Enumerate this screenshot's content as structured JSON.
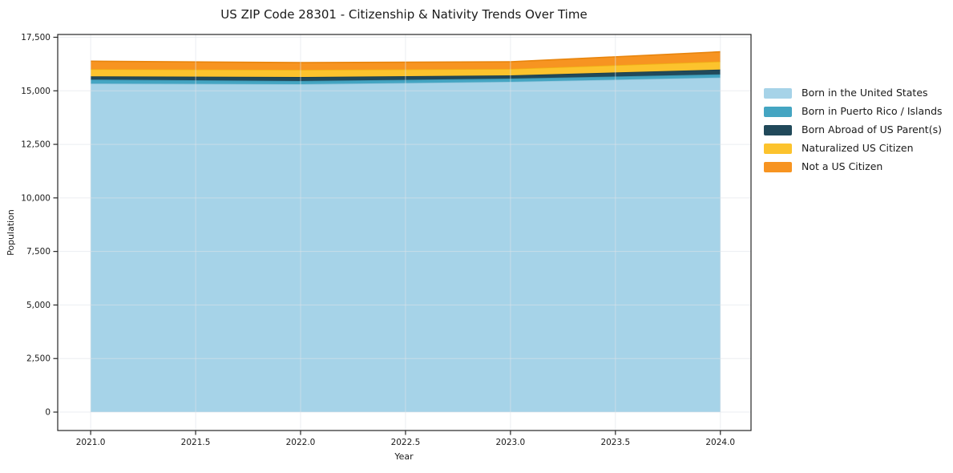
{
  "figure": {
    "background": "#ffffff",
    "spine_color": "#262626",
    "tick_color": "#262626",
    "text_color": "#1a1a1a",
    "grid_color": "rgba(221,227,232,0.6)"
  },
  "chart_data": {
    "type": "area",
    "stacked": true,
    "title": "US ZIP Code 28301 - Citizenship & Nativity Trends Over Time",
    "xlabel": "Year",
    "ylabel": "Population",
    "x": [
      2021.0,
      2022.0,
      2023.0,
      2024.0
    ],
    "series": [
      {
        "name": "Born in the United States",
        "color": "#A6D3E8",
        "edge": "#8FC4DC",
        "values": [
          15340,
          15310,
          15420,
          15620
        ]
      },
      {
        "name": "Born in Puerto Rico / Islands",
        "color": "#44A5C2",
        "edge": "#3A93AE",
        "values": [
          185,
          150,
          150,
          150
        ]
      },
      {
        "name": "Born Abroad of US Parent(s)",
        "color": "#21495A",
        "edge": "#1A3D4C",
        "values": [
          150,
          185,
          150,
          225
        ]
      },
      {
        "name": "Naturalized US Citizen",
        "color": "#FCC32D",
        "edge": "#F0B115",
        "values": [
          335,
          335,
          300,
          375
        ]
      },
      {
        "name": "Not a US Citizen",
        "color": "#F79421",
        "edge": "#E8850D",
        "values": [
          375,
          335,
          335,
          450
        ]
      }
    ],
    "xlim": [
      2020.843,
      2024.146
    ],
    "ylim": [
      -860,
      17630
    ],
    "xticks": [
      2021.0,
      2021.5,
      2022.0,
      2022.5,
      2023.0,
      2023.5,
      2024.0
    ],
    "xtick_labels": [
      "2021.0",
      "2021.5",
      "2022.0",
      "2022.5",
      "2023.0",
      "2023.5",
      "2024.0"
    ],
    "yticks": [
      0,
      2500,
      5000,
      7500,
      10000,
      12500,
      15000,
      17500
    ],
    "ytick_labels": [
      "0",
      "2,500",
      "5,000",
      "7,500",
      "10,000",
      "12,500",
      "15,000",
      "17,500"
    ],
    "grid": true,
    "legend_position": "right of plot, top"
  }
}
